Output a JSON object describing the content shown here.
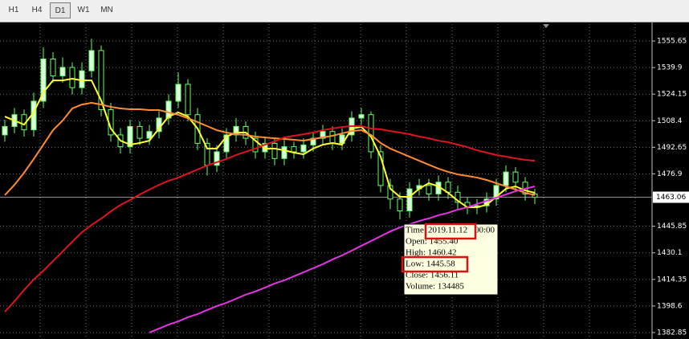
{
  "toolbar": {
    "buttons": [
      "H1",
      "H4",
      "D1",
      "W1",
      "MN"
    ],
    "active": 2
  },
  "chart_data": {
    "type": "candlestick",
    "open": [
      1500,
      1505,
      1512,
      1503,
      1520,
      1545,
      1535,
      1540,
      1528,
      1538,
      1550,
      1515,
      1500,
      1493,
      1505,
      1498,
      1502,
      1510,
      1520,
      1530,
      1512,
      1495,
      1482,
      1490,
      1500,
      1505,
      1498,
      1490,
      1495,
      1486,
      1493,
      1490,
      1494,
      1498,
      1502,
      1495,
      1500,
      1510,
      1512,
      1490,
      1470,
      1462,
      1455,
      1468,
      1470,
      1465,
      1472,
      1466,
      1460,
      1457,
      1458,
      1462,
      1470,
      1478,
      1472,
      1465
    ],
    "high": [
      1509,
      1516,
      1515,
      1525,
      1552,
      1549,
      1546,
      1543,
      1543,
      1557,
      1553,
      1519,
      1504,
      1509,
      1508,
      1506,
      1514,
      1524,
      1537,
      1533,
      1516,
      1498,
      1494,
      1504,
      1510,
      1508,
      1502,
      1499,
      1498,
      1497,
      1496,
      1498,
      1502,
      1506,
      1505,
      1504,
      1514,
      1516,
      1514,
      1494,
      1474,
      1466,
      1472,
      1474,
      1474,
      1476,
      1475,
      1470,
      1463,
      1462,
      1466,
      1474,
      1482,
      1481,
      1475,
      1468
    ],
    "low": [
      1496,
      1501,
      1499,
      1499,
      1516,
      1531,
      1531,
      1524,
      1524,
      1534,
      1511,
      1496,
      1489,
      1489,
      1494,
      1494,
      1498,
      1506,
      1516,
      1508,
      1491,
      1476,
      1478,
      1486,
      1496,
      1494,
      1486,
      1486,
      1482,
      1482,
      1486,
      1486,
      1490,
      1494,
      1491,
      1491,
      1496,
      1506,
      1486,
      1466,
      1456,
      1450,
      1451,
      1464,
      1461,
      1461,
      1462,
      1456,
      1453,
      1453,
      1454,
      1458,
      1466,
      1468,
      1461,
      1459
    ],
    "close": [
      1505,
      1512,
      1503,
      1520,
      1545,
      1535,
      1540,
      1528,
      1538,
      1550,
      1515,
      1500,
      1493,
      1505,
      1498,
      1502,
      1510,
      1520,
      1530,
      1512,
      1495,
      1482,
      1490,
      1500,
      1505,
      1498,
      1490,
      1495,
      1486,
      1493,
      1490,
      1494,
      1498,
      1502,
      1495,
      1500,
      1510,
      1512,
      1490,
      1470,
      1462,
      1455,
      1468,
      1470,
      1465,
      1472,
      1466,
      1460,
      1457,
      1458,
      1462,
      1470,
      1478,
      1472,
      1465,
      1463
    ],
    "up_color": "#d9ffd9",
    "down_color": "#000000",
    "wick_color": "#66ff66",
    "series": [
      {
        "color": "#ffff33",
        "values": [
          1510.9,
          1508.5,
          1506.1,
          1513.3,
          1525.2,
          1532.3,
          1532.3,
          1533.3,
          1532.3,
          1532.3,
          1520.4,
          1503.8,
          1496.6,
          1494.2,
          1495.2,
          1496.6,
          1503.8,
          1510.9,
          1513.3,
          1510.9,
          1503.8,
          1491.9,
          1491.9,
          1499.0,
          1501.4,
          1501.4,
          1496.6,
          1491.9,
          1491.9,
          1490.9,
          1489.5,
          1488.5,
          1491.9,
          1494.2,
          1495.2,
          1494.2,
          1503.8,
          1504.7,
          1499.0,
          1487.1,
          1468.1,
          1463.3,
          1463.3,
          1468.1,
          1471.4,
          1469.5,
          1465.7,
          1461.0,
          1457.1,
          1457.1,
          1458.6,
          1463.3,
          1468.1,
          1469.5,
          1467.1,
          1465.7
        ]
      },
      {
        "color": "#ff8c33",
        "values": [
          1464.3,
          1470.4,
          1477.6,
          1485.7,
          1494.2,
          1502.8,
          1508.5,
          1515.7,
          1518.0,
          1519.0,
          1518.0,
          1516.6,
          1515.7,
          1515.2,
          1515.2,
          1514.7,
          1514.7,
          1513.3,
          1511.9,
          1509.9,
          1507.6,
          1505.2,
          1502.8,
          1501.4,
          1500.4,
          1500.0,
          1499.0,
          1498.5,
          1498.0,
          1497.6,
          1497.1,
          1496.6,
          1497.6,
          1498.5,
          1499.5,
          1500.9,
          1502.3,
          1502.8,
          1500.0,
          1495.2,
          1491.9,
          1489.5,
          1487.1,
          1484.7,
          1482.3,
          1480.0,
          1478.1,
          1476.6,
          1475.7,
          1474.7,
          1473.3,
          1471.4,
          1469.5,
          1467.6,
          1465.7,
          1464.3
        ]
      },
      {
        "color": "#e0141e",
        "values": [
          1395.2,
          1401.4,
          1408.1,
          1414.3,
          1419.5,
          1425.2,
          1430.9,
          1436.7,
          1442.3,
          1446.6,
          1450.4,
          1454.7,
          1458.5,
          1461.4,
          1464.7,
          1467.6,
          1470.4,
          1472.8,
          1474.7,
          1477.1,
          1479.5,
          1481.9,
          1483.8,
          1485.7,
          1488.1,
          1490.0,
          1491.9,
          1494.2,
          1496.1,
          1498.5,
          1499.5,
          1500.4,
          1501.4,
          1502.8,
          1503.8,
          1504.7,
          1505.2,
          1505.2,
          1503.8,
          1503.3,
          1502.3,
          1501.4,
          1500.4,
          1499.0,
          1498.0,
          1496.6,
          1495.7,
          1494.2,
          1492.8,
          1490.9,
          1489.5,
          1488.1,
          1487.1,
          1486.1,
          1485.2,
          1484.7
        ]
      },
      {
        "color": "#e633e6",
        "values": [
          null,
          null,
          null,
          null,
          null,
          null,
          null,
          null,
          null,
          null,
          null,
          null,
          null,
          null,
          null,
          1382.9,
          1385.2,
          1387.6,
          1389.5,
          1391.9,
          1393.8,
          1396.2,
          1398.6,
          1400.5,
          1402.9,
          1405.3,
          1407.2,
          1409.5,
          1411.9,
          1413.8,
          1416.2,
          1418.6,
          1421.0,
          1423.4,
          1426.2,
          1428.6,
          1431.4,
          1434.3,
          1437.1,
          1440.0,
          1442.8,
          1445.2,
          1447.1,
          1449.0,
          1450.5,
          1452.4,
          1453.8,
          1455.7,
          1457.1,
          1459.0,
          1460.9,
          1462.8,
          1464.7,
          1466.6,
          1468.1,
          1469.5
        ]
      }
    ],
    "ylim": [
      1379.99,
      1565.67
    ],
    "yticks": [
      1555.65,
      1539.9,
      1524.15,
      1508.4,
      1492.65,
      1476.9,
      1445.85,
      1430.1,
      1414.35,
      1398.6,
      1382.85
    ],
    "grid": true,
    "current_price": 1463.06
  },
  "tooltip": {
    "time_label": "Time:",
    "time_date": "2019.11.12",
    "time_hour": "00:00",
    "lines": [
      "Open: 1455.40",
      "High: 1460.42",
      "Low: 1445.58",
      "Close: 1456.11",
      "Volume: 134485"
    ]
  }
}
